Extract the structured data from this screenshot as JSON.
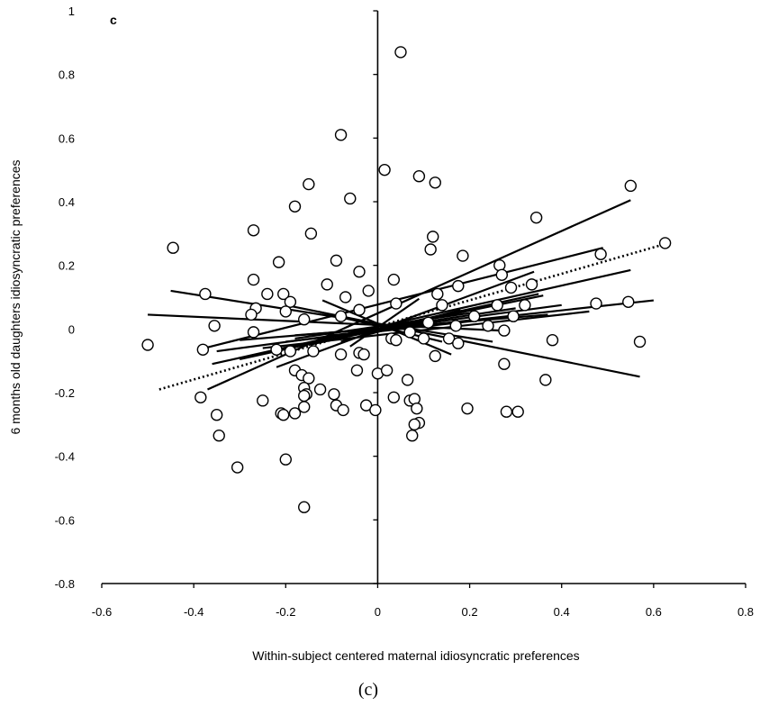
{
  "chart_data": {
    "type": "scatter",
    "title": "",
    "panel_label": "c",
    "caption": "(c)",
    "xlabel": "Within-subject centered maternal idiosyncratic preferences",
    "ylabel": "6 months old daughters idiosyncratic preferences",
    "xlim": [
      -0.6,
      0.8
    ],
    "ylim": [
      -0.8,
      1.0
    ],
    "xticks": [
      "-0.6",
      "-0.4",
      "-0.2",
      "0",
      "0.2",
      "0.4",
      "0.6",
      "0.8"
    ],
    "yticks": [
      "-0.8",
      "-0.6",
      "-0.4",
      "-0.2",
      "0",
      "0.2",
      "0.4",
      "0.6",
      "0.8",
      "1"
    ],
    "xtick_values": [
      -0.6,
      -0.4,
      -0.2,
      0,
      0.2,
      0.4,
      0.6,
      0.8
    ],
    "ytick_values": [
      -0.8,
      -0.6,
      -0.4,
      -0.2,
      0,
      0.2,
      0.4,
      0.6,
      0.8,
      1.0
    ],
    "grid": false,
    "legend": "none",
    "marker": "open-circle",
    "points": [
      [
        0.05,
        0.87
      ],
      [
        -0.08,
        0.61
      ],
      [
        0.015,
        0.5
      ],
      [
        0.09,
        0.48
      ],
      [
        0.125,
        0.46
      ],
      [
        -0.15,
        0.455
      ],
      [
        0.55,
        0.45
      ],
      [
        -0.06,
        0.41
      ],
      [
        -0.18,
        0.385
      ],
      [
        0.345,
        0.35
      ],
      [
        -0.27,
        0.31
      ],
      [
        -0.145,
        0.3
      ],
      [
        0.12,
        0.29
      ],
      [
        0.625,
        0.27
      ],
      [
        -0.445,
        0.255
      ],
      [
        0.115,
        0.25
      ],
      [
        0.485,
        0.235
      ],
      [
        0.185,
        0.23
      ],
      [
        -0.215,
        0.21
      ],
      [
        -0.09,
        0.215
      ],
      [
        0.265,
        0.2
      ],
      [
        -0.04,
        0.18
      ],
      [
        0.27,
        0.17
      ],
      [
        -0.27,
        0.155
      ],
      [
        0.035,
        0.155
      ],
      [
        -0.11,
        0.14
      ],
      [
        0.335,
        0.14
      ],
      [
        0.175,
        0.135
      ],
      [
        0.29,
        0.13
      ],
      [
        -0.375,
        0.11
      ],
      [
        -0.24,
        0.11
      ],
      [
        -0.205,
        0.11
      ],
      [
        -0.02,
        0.12
      ],
      [
        -0.07,
        0.1
      ],
      [
        0.13,
        0.11
      ],
      [
        -0.19,
        0.085
      ],
      [
        0.04,
        0.08
      ],
      [
        0.14,
        0.075
      ],
      [
        0.32,
        0.075
      ],
      [
        0.475,
        0.08
      ],
      [
        0.545,
        0.085
      ],
      [
        -0.265,
        0.065
      ],
      [
        0.26,
        0.075
      ],
      [
        -0.2,
        0.055
      ],
      [
        -0.275,
        0.045
      ],
      [
        -0.08,
        0.04
      ],
      [
        0.21,
        0.04
      ],
      [
        -0.04,
        0.06
      ],
      [
        -0.16,
        0.03
      ],
      [
        0.295,
        0.04
      ],
      [
        -0.355,
        0.01
      ],
      [
        0.24,
        0.01
      ],
      [
        0.17,
        0.01
      ],
      [
        0.11,
        0.02
      ],
      [
        -0.27,
        -0.01
      ],
      [
        0.275,
        -0.005
      ],
      [
        -0.5,
        -0.05
      ],
      [
        -0.38,
        -0.065
      ],
      [
        -0.22,
        -0.065
      ],
      [
        -0.19,
        -0.07
      ],
      [
        -0.14,
        -0.07
      ],
      [
        0.07,
        -0.01
      ],
      [
        0.03,
        -0.03
      ],
      [
        0.04,
        -0.035
      ],
      [
        0.1,
        -0.03
      ],
      [
        0.155,
        -0.03
      ],
      [
        0.175,
        -0.045
      ],
      [
        -0.04,
        -0.075
      ],
      [
        -0.03,
        -0.08
      ],
      [
        0.38,
        -0.035
      ],
      [
        0.57,
        -0.04
      ],
      [
        -0.08,
        -0.08
      ],
      [
        0.125,
        -0.085
      ],
      [
        0.0,
        -0.14
      ],
      [
        0.02,
        -0.13
      ],
      [
        -0.045,
        -0.13
      ],
      [
        -0.18,
        -0.13
      ],
      [
        -0.165,
        -0.145
      ],
      [
        -0.15,
        -0.155
      ],
      [
        0.065,
        -0.16
      ],
      [
        0.365,
        -0.16
      ],
      [
        0.275,
        -0.11
      ],
      [
        -0.16,
        -0.185
      ],
      [
        -0.125,
        -0.19
      ],
      [
        -0.095,
        -0.205
      ],
      [
        -0.155,
        -0.205
      ],
      [
        -0.16,
        -0.21
      ],
      [
        -0.385,
        -0.215
      ],
      [
        0.035,
        -0.215
      ],
      [
        -0.25,
        -0.225
      ],
      [
        0.07,
        -0.225
      ],
      [
        0.08,
        -0.22
      ],
      [
        -0.09,
        -0.24
      ],
      [
        -0.025,
        -0.24
      ],
      [
        -0.16,
        -0.245
      ],
      [
        0.085,
        -0.25
      ],
      [
        0.195,
        -0.25
      ],
      [
        0.28,
        -0.26
      ],
      [
        0.305,
        -0.26
      ],
      [
        -0.005,
        -0.255
      ],
      [
        -0.075,
        -0.255
      ],
      [
        -0.35,
        -0.27
      ],
      [
        -0.21,
        -0.265
      ],
      [
        -0.18,
        -0.265
      ],
      [
        -0.205,
        -0.27
      ],
      [
        0.09,
        -0.295
      ],
      [
        0.08,
        -0.3
      ],
      [
        -0.345,
        -0.335
      ],
      [
        0.075,
        -0.335
      ],
      [
        -0.2,
        -0.41
      ],
      [
        -0.305,
        -0.435
      ],
      [
        -0.16,
        -0.56
      ]
    ],
    "regression_lines": [
      {
        "x": [
          -0.37,
          0.55
        ],
        "y": [
          -0.19,
          0.405
        ],
        "style": "solid"
      },
      {
        "x": [
          -0.5,
          0.27
        ],
        "y": [
          0.045,
          -0.005
        ],
        "style": "solid"
      },
      {
        "x": [
          -0.475,
          0.62
        ],
        "y": [
          -0.19,
          0.265
        ],
        "style": "dotted"
      },
      {
        "x": [
          -0.45,
          0.25
        ],
        "y": [
          0.12,
          -0.04
        ],
        "style": "solid"
      },
      {
        "x": [
          -0.39,
          0.49
        ],
        "y": [
          -0.065,
          0.255
        ],
        "style": "solid"
      },
      {
        "x": [
          -0.2,
          0.57
        ],
        "y": [
          0.075,
          -0.15
        ],
        "style": "solid"
      },
      {
        "x": [
          -0.36,
          0.55
        ],
        "y": [
          -0.11,
          0.185
        ],
        "style": "solid"
      },
      {
        "x": [
          -0.1,
          0.6
        ],
        "y": [
          -0.02,
          0.09
        ],
        "style": "solid"
      },
      {
        "x": [
          -0.25,
          0.46
        ],
        "y": [
          -0.06,
          0.055
        ],
        "style": "solid"
      },
      {
        "x": [
          -0.35,
          0.4
        ],
        "y": [
          -0.07,
          0.075
        ],
        "style": "solid"
      },
      {
        "x": [
          -0.3,
          0.35
        ],
        "y": [
          -0.095,
          0.11
        ],
        "style": "solid"
      },
      {
        "x": [
          -0.22,
          0.34
        ],
        "y": [
          -0.12,
          0.18
        ],
        "style": "solid"
      },
      {
        "x": [
          -0.28,
          0.36
        ],
        "y": [
          -0.085,
          0.105
        ],
        "style": "solid"
      },
      {
        "x": [
          -0.3,
          0.37
        ],
        "y": [
          -0.035,
          0.045
        ],
        "style": "solid"
      },
      {
        "x": [
          -0.12,
          0.16
        ],
        "y": [
          0.09,
          -0.08
        ],
        "style": "solid"
      },
      {
        "x": [
          -0.08,
          0.18
        ],
        "y": [
          -0.04,
          0.06
        ],
        "style": "solid"
      },
      {
        "x": [
          -0.2,
          0.3
        ],
        "y": [
          -0.04,
          0.04
        ],
        "style": "solid"
      },
      {
        "x": [
          -0.06,
          0.09
        ],
        "y": [
          -0.055,
          0.095
        ],
        "style": "solid"
      },
      {
        "x": [
          -0.18,
          0.2
        ],
        "y": [
          -0.03,
          0.05
        ],
        "style": "solid"
      },
      {
        "x": [
          -0.13,
          0.14
        ],
        "y": [
          0.055,
          -0.04
        ],
        "style": "solid"
      },
      {
        "x": [
          0.0,
          0.3
        ],
        "y": [
          0.0,
          0.065
        ],
        "style": "solid"
      },
      {
        "x": [
          -0.15,
          0.16
        ],
        "y": [
          -0.05,
          0.045
        ],
        "style": "solid"
      },
      {
        "x": [
          -0.18,
          0.0
        ],
        "y": [
          -0.02,
          0.0
        ],
        "style": "solid"
      }
    ]
  }
}
